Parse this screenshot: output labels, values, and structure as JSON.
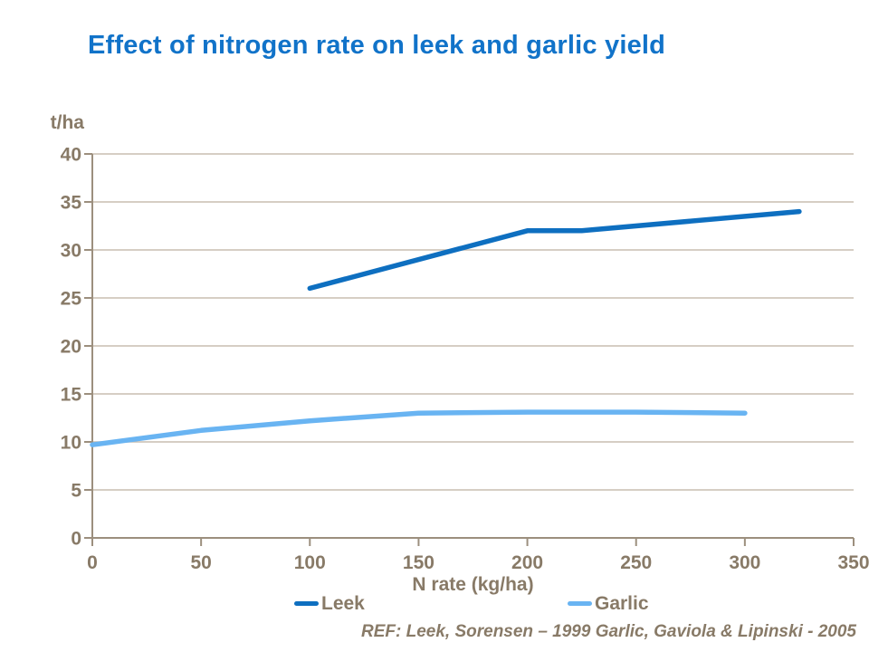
{
  "page": {
    "background": "#FFFFFF"
  },
  "title": {
    "text": "Effect of nitrogen rate on leek and garlic yield",
    "color": "#1173C9"
  },
  "footer": {
    "ref_text": "REF: Leek, Sorensen – 1999 Garlic, Gaviola & Lipinski - 2005"
  },
  "colors": {
    "title": "#1173C9",
    "label": "#887A67",
    "axis": "#9C8F7E",
    "gridline": "#C9BEB0",
    "leek": "#0E6FC0",
    "garlic": "#69B4F2"
  },
  "chart_data": {
    "type": "line",
    "title": "Effect of nitrogen rate on leek and garlic yield",
    "xlabel": "N rate (kg/ha)",
    "ylabel": "t/ha",
    "xlim": [
      0,
      350
    ],
    "ylim": [
      0,
      40
    ],
    "x_ticks": [
      0,
      50,
      100,
      150,
      200,
      250,
      300,
      350
    ],
    "y_ticks": [
      0,
      5,
      10,
      15,
      20,
      25,
      30,
      35,
      40
    ],
    "grid": "horizontal-major-only",
    "legend_position": "bottom",
    "series": [
      {
        "name": "Leek",
        "color": "#0E6FC0",
        "points": [
          [
            100,
            26
          ],
          [
            200,
            32
          ],
          [
            225,
            32
          ],
          [
            325,
            34
          ]
        ]
      },
      {
        "name": "Garlic",
        "color": "#69B4F2",
        "points": [
          [
            0,
            9.7
          ],
          [
            50,
            11.2
          ],
          [
            100,
            12.2
          ],
          [
            150,
            13
          ],
          [
            200,
            13.1
          ],
          [
            250,
            13.1
          ],
          [
            300,
            13
          ]
        ]
      }
    ]
  }
}
